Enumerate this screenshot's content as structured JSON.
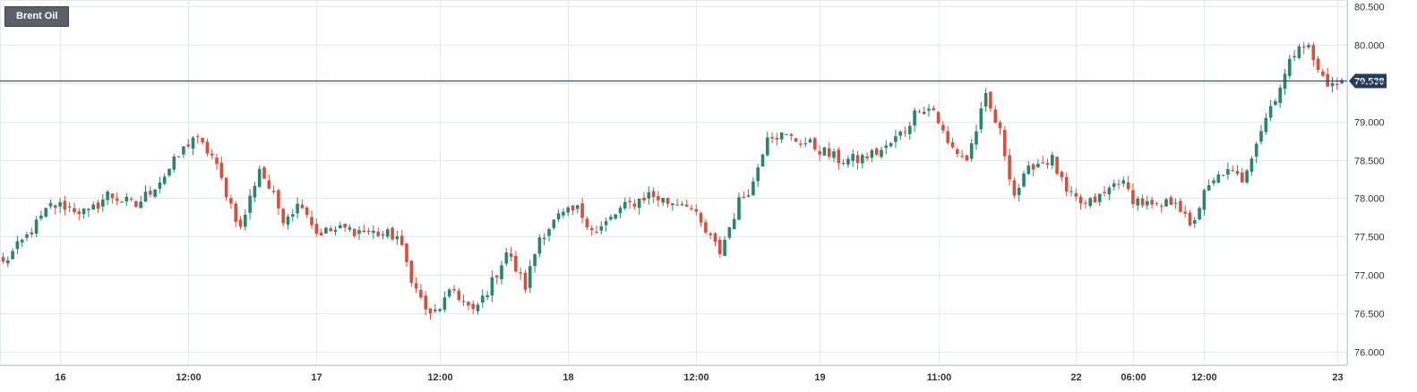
{
  "instrument": {
    "label": "Brent Oil"
  },
  "current_price": {
    "label": "79.538",
    "value": 79.538
  },
  "colors": {
    "up": "#26876a",
    "down": "#d94f3b",
    "grid": "#e6e8ef",
    "price_line": "#1f3b66",
    "axis_text": "#333333",
    "badge_bg": "#5b6066",
    "price_tag_bg": "#1f3b66"
  },
  "chart_data": {
    "type": "candlestick",
    "ylim": [
      75.85,
      80.6
    ],
    "y_ticks": [
      "80.500",
      "80.000",
      "79.500",
      "79.000",
      "78.500",
      "78.000",
      "77.500",
      "77.000",
      "76.500",
      "76.000"
    ],
    "y_tick_values": [
      80.5,
      80.0,
      79.5,
      79.0,
      78.5,
      78.0,
      77.5,
      77.0,
      76.5,
      76.0
    ],
    "x_ticks": [
      {
        "label": "16",
        "bar": 12
      },
      {
        "label": "12:00",
        "bar": 39
      },
      {
        "label": "17",
        "bar": 66
      },
      {
        "label": "12:00",
        "bar": 92
      },
      {
        "label": "18",
        "bar": 119
      },
      {
        "label": "12:00",
        "bar": 146
      },
      {
        "label": "19",
        "bar": 172
      },
      {
        "label": "11:00",
        "bar": 197
      },
      {
        "label": "22",
        "bar": 226
      },
      {
        "label": "06:00",
        "bar": 238
      },
      {
        "label": "12:00",
        "bar": 253
      },
      {
        "label": "23",
        "bar": 281
      }
    ],
    "bar_count": 283,
    "grid": true,
    "legend": "none",
    "price_line": 79.538,
    "anchors": [
      [
        0,
        77.15
      ],
      [
        5,
        77.5
      ],
      [
        10,
        77.9
      ],
      [
        13,
        77.9
      ],
      [
        18,
        77.8
      ],
      [
        22,
        78.05
      ],
      [
        28,
        77.9
      ],
      [
        34,
        78.3
      ],
      [
        40,
        78.8
      ],
      [
        44,
        78.55
      ],
      [
        50,
        77.6
      ],
      [
        54,
        78.4
      ],
      [
        59,
        77.75
      ],
      [
        63,
        77.95
      ],
      [
        66,
        77.55
      ],
      [
        72,
        77.6
      ],
      [
        78,
        77.55
      ],
      [
        83,
        77.5
      ],
      [
        87,
        76.8
      ],
      [
        90,
        76.45
      ],
      [
        95,
        76.8
      ],
      [
        99,
        76.5
      ],
      [
        103,
        76.9
      ],
      [
        106,
        77.3
      ],
      [
        110,
        76.85
      ],
      [
        113,
        77.5
      ],
      [
        117,
        77.75
      ],
      [
        121,
        77.85
      ],
      [
        125,
        77.55
      ],
      [
        130,
        77.85
      ],
      [
        136,
        78.05
      ],
      [
        140,
        77.95
      ],
      [
        144,
        77.95
      ],
      [
        148,
        77.55
      ],
      [
        151,
        77.3
      ],
      [
        155,
        77.95
      ],
      [
        158,
        78.2
      ],
      [
        161,
        78.85
      ],
      [
        165,
        78.8
      ],
      [
        170,
        78.7
      ],
      [
        176,
        78.5
      ],
      [
        180,
        78.5
      ],
      [
        186,
        78.65
      ],
      [
        190,
        78.9
      ],
      [
        193,
        79.2
      ],
      [
        196,
        79.15
      ],
      [
        199,
        78.7
      ],
      [
        203,
        78.5
      ],
      [
        207,
        79.3
      ],
      [
        210,
        78.85
      ],
      [
        213,
        78.05
      ],
      [
        217,
        78.45
      ],
      [
        221,
        78.5
      ],
      [
        224,
        78.05
      ],
      [
        228,
        77.9
      ],
      [
        232,
        78.05
      ],
      [
        235,
        78.25
      ],
      [
        238,
        78.0
      ],
      [
        243,
        77.85
      ],
      [
        247,
        78.0
      ],
      [
        250,
        77.6
      ],
      [
        253,
        78.05
      ],
      [
        257,
        78.35
      ],
      [
        261,
        78.25
      ],
      [
        264,
        78.75
      ],
      [
        267,
        79.2
      ],
      [
        270,
        79.6
      ],
      [
        273,
        80.05
      ],
      [
        275,
        79.95
      ],
      [
        277,
        79.65
      ],
      [
        280,
        79.45
      ],
      [
        282,
        79.54
      ]
    ]
  }
}
